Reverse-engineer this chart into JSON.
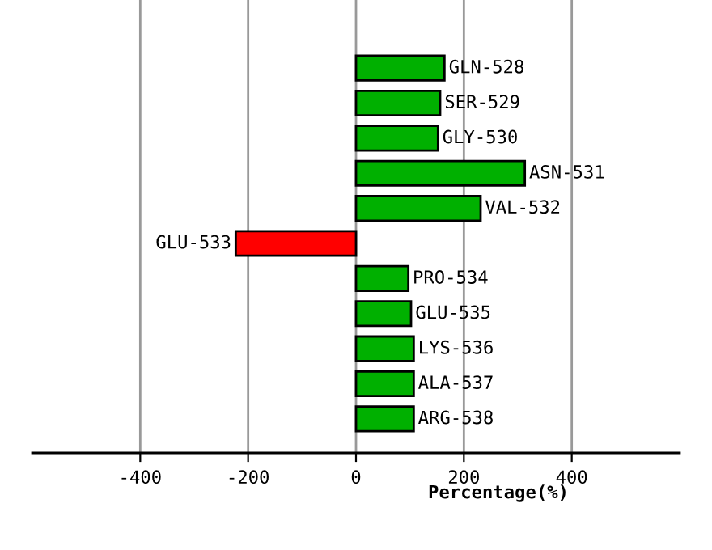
{
  "chart_data": {
    "type": "bar",
    "orientation": "horizontal",
    "xlabel": "Percentage(%)",
    "categories": [
      "GLN-528",
      "SER-529",
      "GLY-530",
      "ASN-531",
      "VAL-532",
      "GLU-533",
      "PRO-534",
      "GLU-535",
      "LYS-536",
      "ALA-537",
      "ARG-538"
    ],
    "values": [
      164,
      156,
      152,
      313,
      231,
      -223,
      97,
      102,
      107,
      107,
      107
    ],
    "colors": [
      "#00b000",
      "#00b000",
      "#00b000",
      "#00b000",
      "#00b000",
      "#ff0000",
      "#00b000",
      "#00b000",
      "#00b000",
      "#00b000",
      "#00b000"
    ],
    "xlim": [
      -600,
      600
    ],
    "xticks": [
      -400,
      -200,
      0,
      200,
      400
    ],
    "grid": "x",
    "tick_labels": "x"
  }
}
